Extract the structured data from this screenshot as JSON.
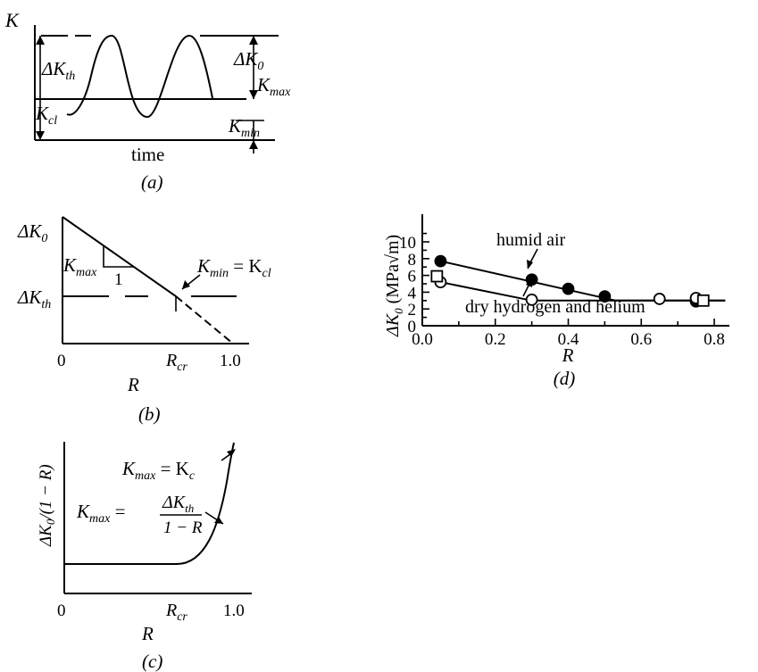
{
  "panel_a": {
    "y_axis_label": "K",
    "label_dk_th": "ΔK",
    "label_dk_th_sub": "th",
    "label_dk0": "ΔK",
    "label_dk0_sub": "0",
    "label_kmax": "K",
    "label_kmax_sub": "max",
    "label_kcl": "K",
    "label_kcl_sub": "cl",
    "label_kmin": "K",
    "label_kmin_sub": "min",
    "x_axis_label": "time",
    "caption": "(a)"
  },
  "panel_b": {
    "label_dk0": "ΔK",
    "label_dk0_sub": "0",
    "label_dk_th": "ΔK",
    "label_dk_th_sub": "th",
    "slope_label": "K",
    "slope_label_sub": "max",
    "slope_run": "1",
    "annot_kmin": "K",
    "annot_kmin_sub": "min",
    "annot_eq": " = K",
    "annot_kcl_sub": "cl",
    "tick_0": "0",
    "tick_rcr": "R",
    "tick_rcr_sub": "cr",
    "tick_1": "1.0",
    "x_axis_label": "R",
    "caption": "(b)"
  },
  "panel_c": {
    "y_label": "ΔK",
    "y_label_sub": "0",
    "y_label_rest": "/(1 − R)",
    "annot1": "K",
    "annot1_sub": "max",
    "annot1_eq": " = K",
    "annot1_sub2": "c",
    "annot2": "K",
    "annot2_sub": "max",
    "annot2_eq": " =",
    "frac_num": "ΔK",
    "frac_num_sub": "th",
    "frac_den": "1 − R",
    "tick_0": "0",
    "tick_rcr": "R",
    "tick_rcr_sub": "cr",
    "tick_1": "1.0",
    "x_axis_label": "R",
    "caption": "(c)"
  },
  "chart_data": {
    "type": "scatter",
    "x": [
      0.05,
      0.3,
      0.4,
      0.5,
      0.75
    ],
    "xlabel": "R",
    "ylabel": "ΔK₀ (MPa√m)",
    "xlim": [
      0.0,
      0.85
    ],
    "ylim": [
      0,
      12
    ],
    "x_ticks": [
      "0.0",
      "0.2",
      "0.4",
      "0.6",
      "0.8"
    ],
    "y_ticks": [
      "0",
      "2",
      "4",
      "6",
      "8",
      "10"
    ],
    "caption": "(d)",
    "series": [
      {
        "name": "humid air",
        "marker": "filled-circle",
        "points": [
          [
            0.05,
            7.7
          ],
          [
            0.3,
            5.5
          ],
          [
            0.4,
            4.4
          ],
          [
            0.5,
            3.5
          ],
          [
            0.75,
            2.9
          ]
        ],
        "fit": [
          [
            0.05,
            7.7
          ],
          [
            0.53,
            3.0
          ],
          [
            0.83,
            3.0
          ]
        ]
      },
      {
        "name": "dry hydrogen and helium",
        "marker": "open-circle",
        "points": [
          [
            0.05,
            5.2
          ],
          [
            0.3,
            3.1
          ],
          [
            0.65,
            3.2
          ],
          [
            0.75,
            3.3
          ]
        ],
        "fit": [
          [
            0.05,
            5.2
          ],
          [
            0.3,
            3.0
          ],
          [
            0.83,
            3.0
          ]
        ]
      },
      {
        "name": "",
        "marker": "open-square",
        "points": [
          [
            0.04,
            5.9
          ],
          [
            0.77,
            3.0
          ]
        ]
      }
    ]
  }
}
